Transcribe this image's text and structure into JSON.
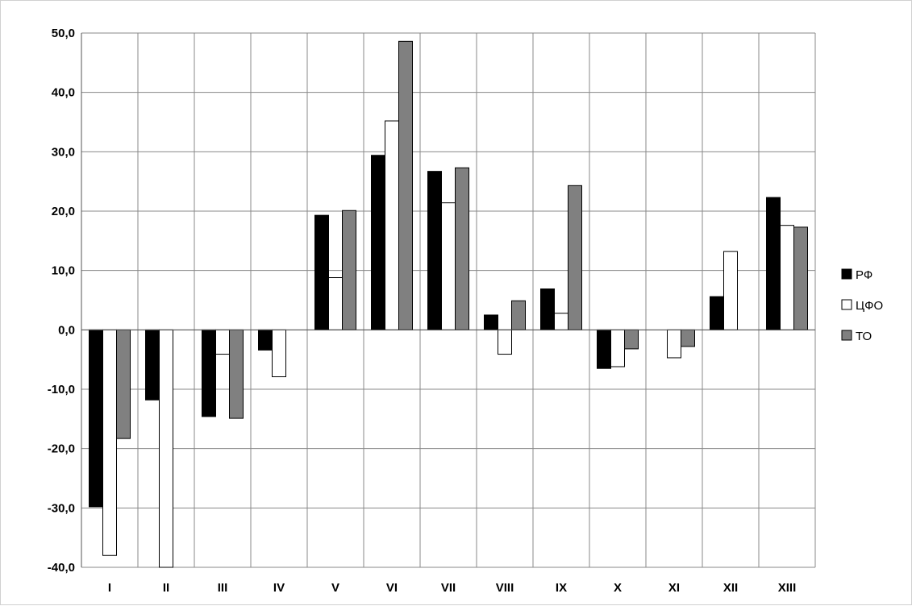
{
  "chart_data": {
    "type": "bar",
    "title": "",
    "xlabel": "",
    "ylabel": "",
    "categories": [
      "I",
      "II",
      "III",
      "IV",
      "V",
      "VI",
      "VII",
      "VIII",
      "IX",
      "X",
      "XI",
      "XII",
      "XIII"
    ],
    "series": [
      {
        "name": "РФ",
        "color": "#000000",
        "values": [
          -29.8,
          -11.8,
          -14.6,
          -3.4,
          19.3,
          29.4,
          26.7,
          2.5,
          6.9,
          -6.5,
          0.0,
          5.6,
          22.3
        ]
      },
      {
        "name": "ЦФО",
        "color": "#ffffff",
        "values": [
          -38.0,
          -40.0,
          -4.1,
          -7.9,
          8.8,
          35.2,
          21.4,
          -4.1,
          2.8,
          -6.2,
          -4.7,
          13.2,
          17.6
        ]
      },
      {
        "name": "ТО",
        "color": "#808080",
        "values": [
          -18.3,
          0.0,
          -14.9,
          0.0,
          20.1,
          48.6,
          27.3,
          4.9,
          24.3,
          -3.2,
          -2.8,
          0.0,
          17.3
        ]
      }
    ],
    "ylim": [
      -40,
      50
    ],
    "yticks": [
      "-40,0",
      "-30,0",
      "-20,0",
      "-10,0",
      "0,0",
      "10,0",
      "20,0",
      "30,0",
      "40,0",
      "50,0"
    ],
    "grid": true,
    "legend_position": "right"
  }
}
